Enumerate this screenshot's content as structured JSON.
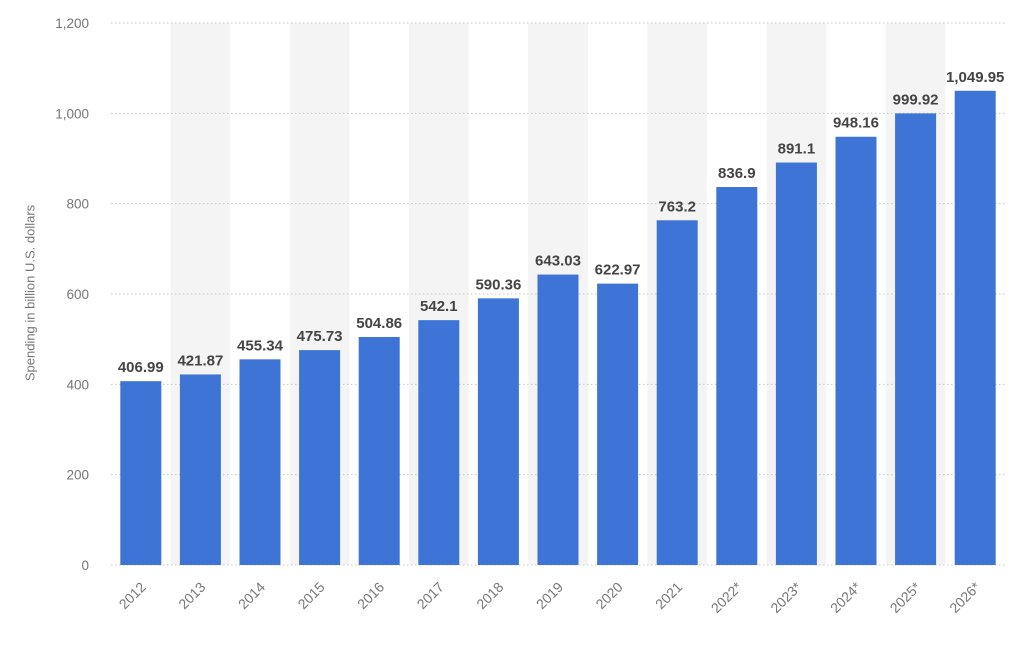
{
  "chart_data": {
    "type": "bar",
    "title": "",
    "xlabel": "",
    "ylabel": "Spending in billion U.S. dollars",
    "categories": [
      "2012",
      "2013",
      "2014",
      "2015",
      "2016",
      "2017",
      "2018",
      "2019",
      "2020",
      "2021",
      "2022*",
      "2023*",
      "2024*",
      "2025*",
      "2026*"
    ],
    "values": [
      406.99,
      421.87,
      455.34,
      475.73,
      504.86,
      542.1,
      590.36,
      643.03,
      622.97,
      763.2,
      836.9,
      891.1,
      948.16,
      999.92,
      1049.95
    ],
    "value_labels": [
      "406.99",
      "421.87",
      "455.34",
      "475.73",
      "504.86",
      "542.1",
      "590.36",
      "643.03",
      "622.97",
      "763.2",
      "836.9",
      "891.1",
      "948.16",
      "999.92",
      "1,049.95"
    ],
    "ylim": [
      0,
      1200
    ],
    "yticks": [
      0,
      200,
      400,
      600,
      800,
      1000,
      1200
    ],
    "ytick_labels": [
      "0",
      "200",
      "400",
      "600",
      "800",
      "1,000",
      "1,200"
    ],
    "grid": true,
    "legend": "none",
    "colors": {
      "bar": "#3d74d6",
      "band": "#f4f4f4",
      "grid": "#c8c8c8",
      "axis_text": "#777777",
      "value_text": "#444444"
    }
  }
}
